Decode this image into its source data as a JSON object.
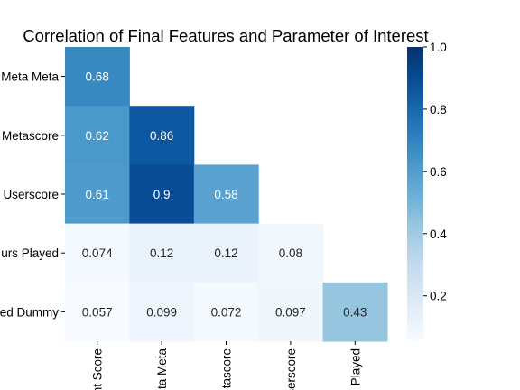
{
  "chart_data": {
    "type": "heatmap",
    "title": "Correlation of Final Features and Parameter of Interest",
    "row_labels": [
      "Meta Meta",
      "Metascore",
      "Userscore",
      "urs Played",
      "ed Dummy"
    ],
    "col_labels": [
      "nt Score",
      "ta Meta",
      "tascore",
      "serscore",
      "Played"
    ],
    "values": [
      [
        0.68,
        null,
        null,
        null,
        null
      ],
      [
        0.62,
        0.86,
        null,
        null,
        null
      ],
      [
        0.61,
        0.9,
        0.58,
        null,
        null
      ],
      [
        0.074,
        0.12,
        0.12,
        0.08,
        null
      ],
      [
        0.057,
        0.099,
        0.072,
        0.097,
        0.43
      ]
    ],
    "value_labels": [
      [
        "0.68",
        "",
        "",
        "",
        ""
      ],
      [
        "0.62",
        "0.86",
        "",
        "",
        ""
      ],
      [
        "0.61",
        "0.9",
        "0.58",
        "",
        ""
      ],
      [
        "0.074",
        "0.12",
        "0.12",
        "0.08",
        ""
      ],
      [
        "0.057",
        "0.099",
        "0.072",
        "0.097",
        "0.43"
      ]
    ],
    "colormap": "Blues",
    "color_range": [
      0.057,
      1.0
    ],
    "colorbar_ticks": [
      "0.2",
      "0.4",
      "0.6",
      "0.8",
      "1.0"
    ],
    "colorbar_tick_values": [
      0.2,
      0.4,
      0.6,
      0.8,
      1.0
    ]
  }
}
